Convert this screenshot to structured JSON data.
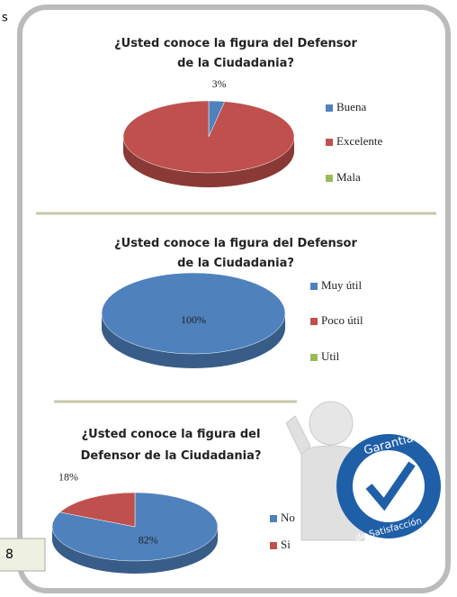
{
  "chart_data": [
    {
      "type": "pie",
      "title": "¿Usted conoce la figura del Defensor de la Ciudadania?",
      "categories": [
        "Buena",
        "Excelente",
        "Mala"
      ],
      "values": [
        3,
        97,
        0
      ],
      "value_labels": [
        "3%",
        null,
        null
      ],
      "colors": [
        "#4f81bd",
        "#c0504d",
        "#9bbb59"
      ]
    },
    {
      "type": "pie",
      "title": "¿Usted conoce la figura del Defensor de la Ciudadania?",
      "categories": [
        "Muy útil",
        "Poco útil",
        "Util"
      ],
      "values": [
        100,
        0,
        0
      ],
      "value_labels": [
        "100%",
        null,
        null
      ],
      "colors": [
        "#4f81bd",
        "#c0504d",
        "#9bbb59"
      ]
    },
    {
      "type": "pie",
      "title": "¿Usted conoce la figura del Defensor de la Ciudadania?",
      "categories": [
        "No",
        "Si"
      ],
      "values": [
        82,
        18
      ],
      "value_labels": [
        "82%",
        "18%"
      ],
      "colors": [
        "#4f81bd",
        "#c0504d"
      ]
    }
  ],
  "fragments": {
    "top_left": "s",
    "bottom_left": "8"
  },
  "badge": {
    "top": "Garantía",
    "bottom": "de Satisfacción"
  }
}
